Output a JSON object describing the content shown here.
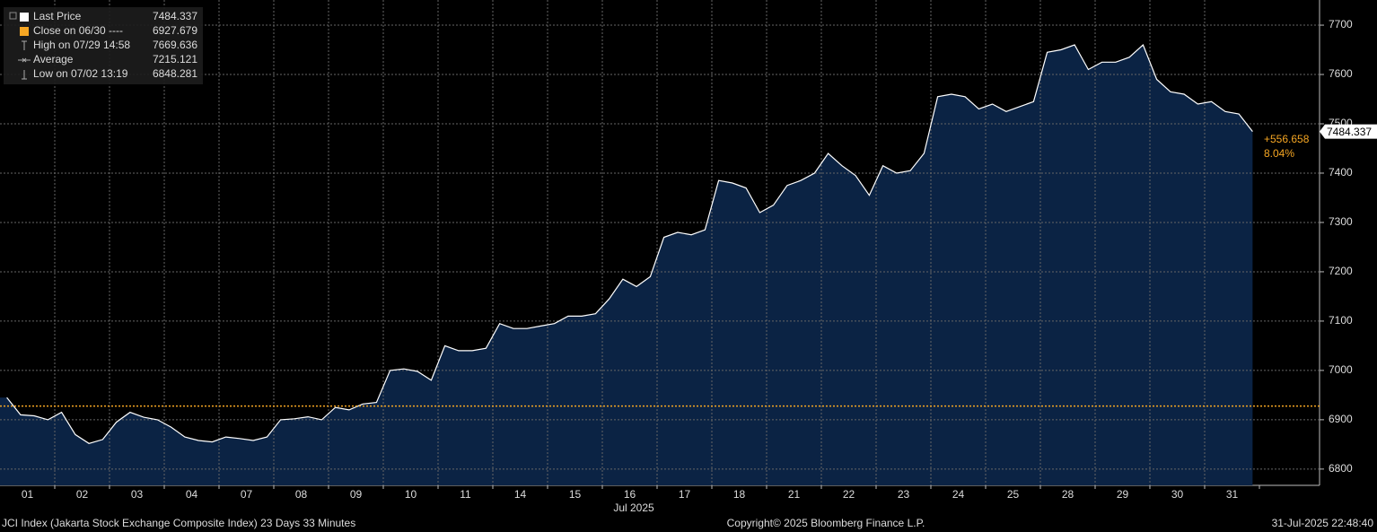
{
  "chart_data": {
    "type": "area",
    "x_labels": [
      "01",
      "02",
      "03",
      "04",
      "07",
      "08",
      "09",
      "10",
      "11",
      "14",
      "15",
      "16",
      "17",
      "18",
      "21",
      "22",
      "23",
      "24",
      "25",
      "28",
      "29",
      "30",
      "31"
    ],
    "x_label_month": "Jul 2025",
    "series": [
      {
        "name": "Last Price",
        "color": "#ffffff",
        "fill": "#0b2344",
        "values": [
          6945,
          6910,
          6908,
          6900,
          6915,
          6870,
          6852,
          6860,
          6895,
          6915,
          6905,
          6900,
          6885,
          6865,
          6858,
          6855,
          6865,
          6862,
          6858,
          6865,
          6900,
          6902,
          6906,
          6900,
          6925,
          6920,
          6932,
          6935,
          7000,
          7003,
          6998,
          6980,
          7050,
          7040,
          7040,
          7045,
          7095,
          7085,
          7085,
          7090,
          7095,
          7110,
          7110,
          7115,
          7145,
          7185,
          7170,
          7190,
          7270,
          7280,
          7275,
          7285,
          7385,
          7380,
          7370,
          7320,
          7335,
          7375,
          7385,
          7400,
          7440,
          7415,
          7395,
          7355,
          7415,
          7400,
          7405,
          7440,
          7555,
          7560,
          7555,
          7530,
          7540,
          7525,
          7535,
          7545,
          7645,
          7650,
          7660,
          7610,
          7625,
          7625,
          7635,
          7660,
          7590,
          7565,
          7560,
          7540,
          7545,
          7525,
          7520,
          7484.337
        ]
      }
    ],
    "close": {
      "label": "Close on 06/30 ----",
      "value": 6927.679,
      "color": "#f5a623"
    },
    "legend": [
      {
        "label": "High on 07/29 14:58",
        "value": 7669.636
      },
      {
        "label": "Average",
        "value": 7215.121
      },
      {
        "label": "Low on 07/02 13:19",
        "value": 6848.281
      }
    ],
    "change": "+556.658",
    "change_pct": "8.04%",
    "ylim": [
      6767,
      7751
    ],
    "yticks": [
      6800,
      6900,
      7000,
      7100,
      7200,
      7300,
      7400,
      7500,
      7600,
      7700
    ],
    "grid": true,
    "footer_left": "JCI Index (Jakarta Stock Exchange Composite Index) 23 Days 33 Minutes",
    "footer_center": "Copyright© 2025 Bloomberg Finance L.P.",
    "footer_right": "31-Jul-2025 22:48:40"
  }
}
